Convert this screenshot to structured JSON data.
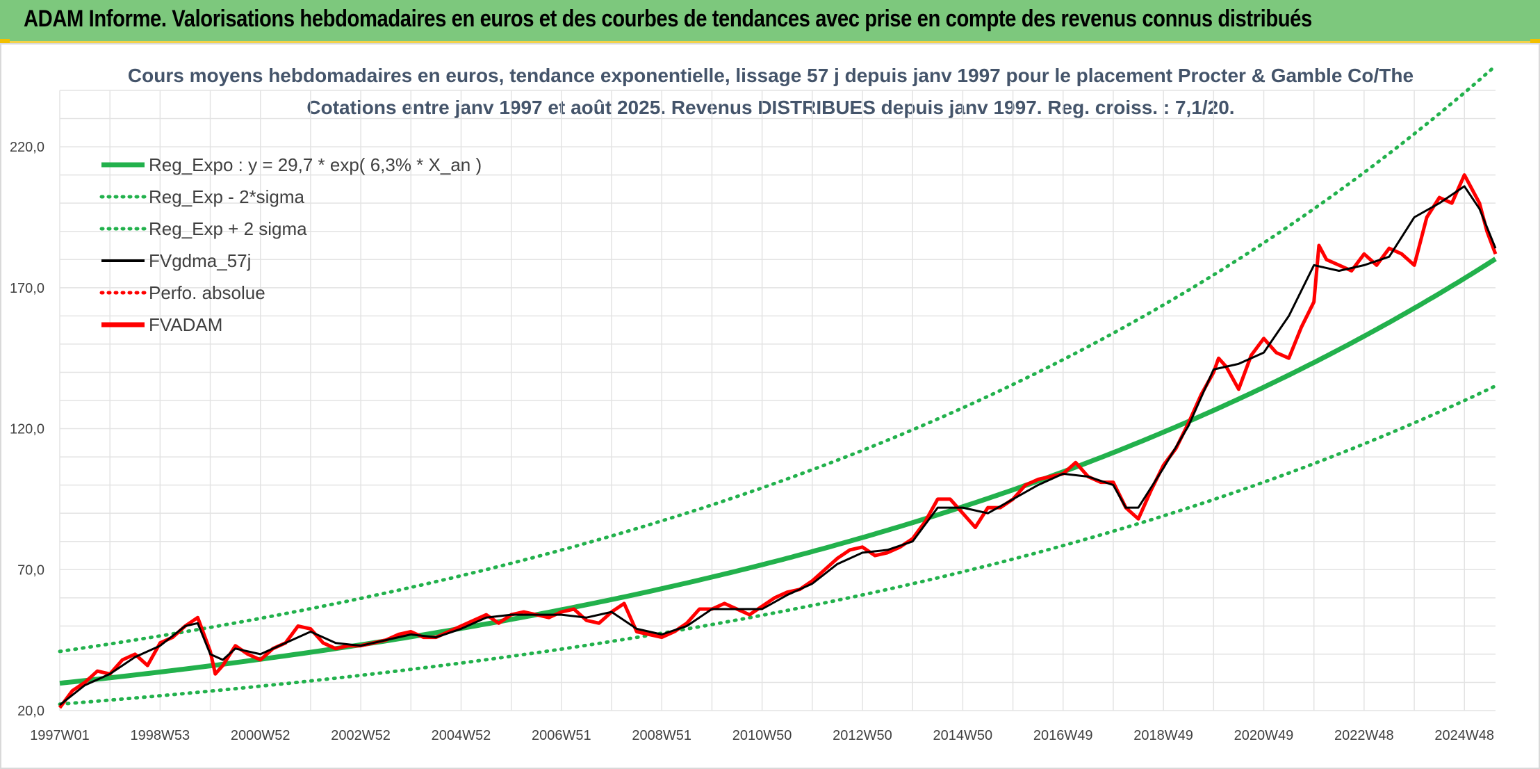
{
  "header": {
    "title": "ADAM Informe. Valorisations hebdomadaires en euros et des courbes de tendances avec prise en compte des revenus connus distribués",
    "background": "#7dc87d"
  },
  "chart_data": {
    "type": "line",
    "title_line1": "Cours moyens hebdomadaires en euros, tendance exponentielle, lissage 57 j depuis janv 1997 pour le placement Procter & Gamble Co/The",
    "title_line2": "Cotations entre janv 1997 et août 2025. Revenus DISTRIBUES depuis janv 1997. Reg. croiss. : 7,1/20.",
    "xlabel": "",
    "ylabel": "",
    "x_range": [
      1997.0,
      2025.62
    ],
    "ylim": [
      20,
      240
    ],
    "y_ticks": [
      20,
      70,
      120,
      170,
      220
    ],
    "y_tick_labels": [
      "20,0",
      "70,0",
      "120,0",
      "170,0",
      "220,0"
    ],
    "x_tick_labels": [
      "1997W01",
      "1998W53",
      "2000W52",
      "2002W52",
      "2004W52",
      "2006W51",
      "2008W51",
      "2010W50",
      "2012W50",
      "2014W50",
      "2016W49",
      "2018W49",
      "2020W49",
      "2022W48",
      "2024W48"
    ],
    "x_tick_years": [
      1997.0,
      1999.0,
      2001.0,
      2003.0,
      2005.0,
      2007.0,
      2009.0,
      2011.0,
      2013.0,
      2015.0,
      2017.0,
      2019.0,
      2021.0,
      2023.0,
      2025.0
    ],
    "grid": true,
    "legend_position": "top-left",
    "regression": {
      "a": 29.7,
      "rate": 0.063,
      "upper_factor": 1.38,
      "lower_factor": 0.75
    },
    "legend": [
      {
        "label": "Reg_Expo : y = 29,7 * exp( 6,3% *  X_an )",
        "color": "#22b14c",
        "style": "solid-thick"
      },
      {
        "label": "Reg_Exp - 2*sigma",
        "color": "#22b14c",
        "style": "dotted"
      },
      {
        "label": "Reg_Exp + 2 sigma",
        "color": "#22b14c",
        "style": "dotted"
      },
      {
        "label": "FVgdma_57j",
        "color": "#000000",
        "style": "solid"
      },
      {
        "label": "Perfo. absolue",
        "color": "#ff0000",
        "style": "dotted"
      },
      {
        "label": "FVADAM",
        "color": "#ff0000",
        "style": "solid-thick"
      }
    ],
    "series": [
      {
        "name": "FVADAM",
        "color": "#ff0000",
        "x": [
          1997.0,
          1997.25,
          1997.5,
          1997.75,
          1998.0,
          1998.25,
          1998.5,
          1998.75,
          1999.0,
          1999.25,
          1999.5,
          1999.75,
          2000.0,
          2000.1,
          2000.25,
          2000.5,
          2000.75,
          2001.0,
          2001.25,
          2001.5,
          2001.75,
          2002.0,
          2002.25,
          2002.5,
          2002.75,
          2003.0,
          2003.25,
          2003.5,
          2003.75,
          2004.0,
          2004.25,
          2004.5,
          2004.75,
          2005.0,
          2005.25,
          2005.5,
          2005.75,
          2006.0,
          2006.25,
          2006.5,
          2006.75,
          2007.0,
          2007.25,
          2007.5,
          2007.75,
          2008.0,
          2008.25,
          2008.5,
          2008.75,
          2009.0,
          2009.25,
          2009.5,
          2009.75,
          2010.0,
          2010.25,
          2010.5,
          2010.75,
          2011.0,
          2011.25,
          2011.5,
          2011.75,
          2012.0,
          2012.25,
          2012.5,
          2012.75,
          2013.0,
          2013.25,
          2013.5,
          2013.75,
          2014.0,
          2014.25,
          2014.5,
          2014.75,
          2015.0,
          2015.25,
          2015.5,
          2015.75,
          2016.0,
          2016.25,
          2016.5,
          2016.75,
          2017.0,
          2017.25,
          2017.5,
          2017.75,
          2018.0,
          2018.25,
          2018.5,
          2018.75,
          2019.0,
          2019.25,
          2019.5,
          2019.75,
          2020.0,
          2020.1,
          2020.25,
          2020.5,
          2020.75,
          2021.0,
          2021.25,
          2021.5,
          2021.75,
          2022.0,
          2022.1,
          2022.25,
          2022.5,
          2022.75,
          2023.0,
          2023.25,
          2023.5,
          2023.75,
          2024.0,
          2024.25,
          2024.5,
          2024.75,
          2025.0,
          2025.15,
          2025.3,
          2025.45,
          2025.62
        ],
        "y": [
          21,
          27,
          30,
          34,
          33,
          38,
          40,
          36,
          44,
          46,
          50,
          53,
          41,
          33,
          36,
          43,
          40,
          38,
          42,
          44,
          50,
          49,
          44,
          42,
          43,
          43,
          44,
          45,
          47,
          48,
          46,
          46,
          48,
          50,
          52,
          54,
          51,
          54,
          55,
          54,
          53,
          55,
          56,
          52,
          51,
          55,
          58,
          48,
          47,
          46,
          48,
          51,
          56,
          56,
          58,
          56,
          54,
          57,
          60,
          62,
          63,
          66,
          70,
          74,
          77,
          78,
          75,
          76,
          78,
          81,
          87,
          95,
          95,
          90,
          85,
          92,
          92,
          95,
          100,
          102,
          103,
          104,
          108,
          103,
          101,
          101,
          92,
          88,
          98,
          107,
          113,
          122,
          132,
          140,
          145,
          142,
          134,
          146,
          152,
          147,
          145,
          156,
          165,
          185,
          180,
          178,
          176,
          182,
          178,
          184,
          182,
          178,
          195,
          202,
          200,
          210,
          205,
          200,
          190,
          182
        ]
      },
      {
        "name": "FVgdma_57j",
        "color": "#000000",
        "x": [
          1997.0,
          1997.5,
          1998.0,
          1998.5,
          1999.0,
          1999.5,
          1999.75,
          2000.0,
          2000.25,
          2000.5,
          2001.0,
          2001.5,
          2002.0,
          2002.5,
          2003.0,
          2003.5,
          2004.0,
          2004.5,
          2005.0,
          2005.5,
          2006.0,
          2006.5,
          2007.0,
          2007.5,
          2008.0,
          2008.5,
          2009.0,
          2009.5,
          2010.0,
          2010.5,
          2011.0,
          2011.5,
          2012.0,
          2012.5,
          2013.0,
          2013.5,
          2014.0,
          2014.5,
          2015.0,
          2015.5,
          2016.0,
          2016.5,
          2017.0,
          2017.5,
          2018.0,
          2018.25,
          2018.5,
          2019.0,
          2019.5,
          2020.0,
          2020.5,
          2021.0,
          2021.5,
          2022.0,
          2022.5,
          2023.0,
          2023.5,
          2024.0,
          2024.5,
          2025.0,
          2025.3,
          2025.62
        ],
        "y": [
          22,
          29,
          33,
          39,
          43,
          50,
          51,
          40,
          38,
          42,
          40,
          44,
          48,
          44,
          43,
          45,
          47,
          46,
          49,
          53,
          54,
          54,
          54,
          53,
          55,
          49,
          47,
          50,
          56,
          56,
          56,
          61,
          65,
          72,
          76,
          77,
          80,
          92,
          92,
          90,
          95,
          100,
          104,
          103,
          100,
          92,
          92,
          106,
          121,
          141,
          143,
          147,
          160,
          178,
          176,
          178,
          181,
          195,
          200,
          206,
          198,
          184
        ]
      },
      {
        "name": "Reg_Expo",
        "color": "#22b14c",
        "kind": "exp",
        "factor": 1.0
      },
      {
        "name": "Reg_Exp - 2*sigma",
        "color": "#22b14c",
        "kind": "exp",
        "factor": 0.75
      },
      {
        "name": "Reg_Exp + 2 sigma",
        "color": "#22b14c",
        "kind": "exp",
        "factor": 1.38
      }
    ]
  }
}
